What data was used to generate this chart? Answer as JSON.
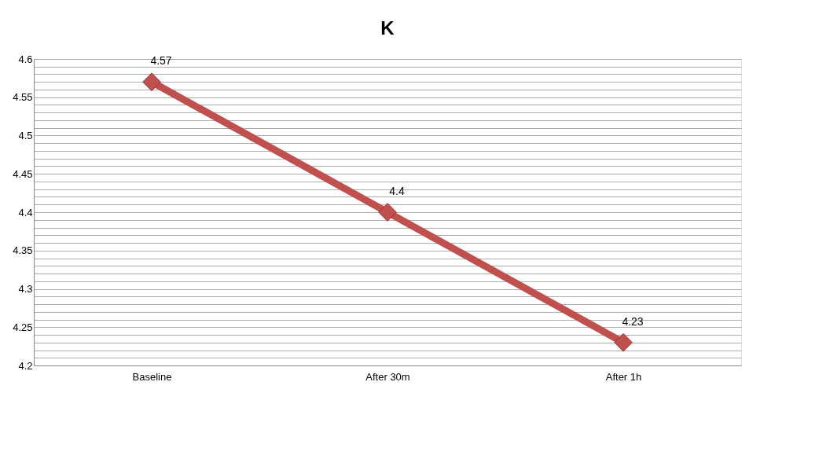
{
  "chart_data": {
    "type": "line",
    "title": "K",
    "categories": [
      "Baseline",
      "After 30m",
      "After 1h"
    ],
    "series": [
      {
        "color": "#c0504d",
        "values": [
          4.57,
          4.4,
          4.23
        ]
      }
    ],
    "ylim": [
      4.2,
      4.6
    ],
    "yticks": [
      4.2,
      {
        "value": 4.21,
        "label": null
      },
      {
        "value": 4.22,
        "label": null
      },
      {
        "value": 4.23,
        "label": null
      },
      {
        "value": 4.24,
        "label": null
      },
      4.25,
      {
        "value": 4.26,
        "label": null
      },
      {
        "value": 4.27,
        "label": null
      },
      {
        "value": 4.28,
        "label": null
      },
      {
        "value": 4.29,
        "label": null
      },
      4.3,
      {
        "value": 4.31,
        "label": null
      },
      {
        "value": 4.32,
        "label": null
      },
      {
        "value": 4.33,
        "label": null
      },
      {
        "value": 4.34,
        "label": null
      },
      4.35,
      {
        "value": 4.36,
        "label": null
      },
      {
        "value": 4.37,
        "label": null
      },
      {
        "value": 4.38,
        "label": null
      },
      {
        "value": 4.39,
        "label": null
      },
      4.4,
      {
        "value": 4.41,
        "label": null
      },
      {
        "value": 4.42,
        "label": null
      },
      {
        "value": 4.43,
        "label": null
      },
      {
        "value": 4.44,
        "label": null
      },
      4.45,
      {
        "value": 4.46,
        "label": null
      },
      {
        "value": 4.47,
        "label": null
      },
      {
        "value": 4.48,
        "label": null
      },
      {
        "value": 4.49,
        "label": null
      },
      4.5,
      {
        "value": 4.51,
        "label": null
      },
      {
        "value": 4.52,
        "label": null
      },
      {
        "value": 4.53,
        "label": null
      },
      {
        "value": 4.54,
        "label": null
      },
      4.55,
      {
        "value": 4.56,
        "label": null
      },
      {
        "value": 4.57,
        "label": null
      },
      {
        "value": 4.58,
        "label": null
      },
      {
        "value": 4.59,
        "label": null
      },
      4.6
    ],
    "grid": "y",
    "marker": "diamond",
    "line_style": "solid",
    "data_labels": true
  }
}
